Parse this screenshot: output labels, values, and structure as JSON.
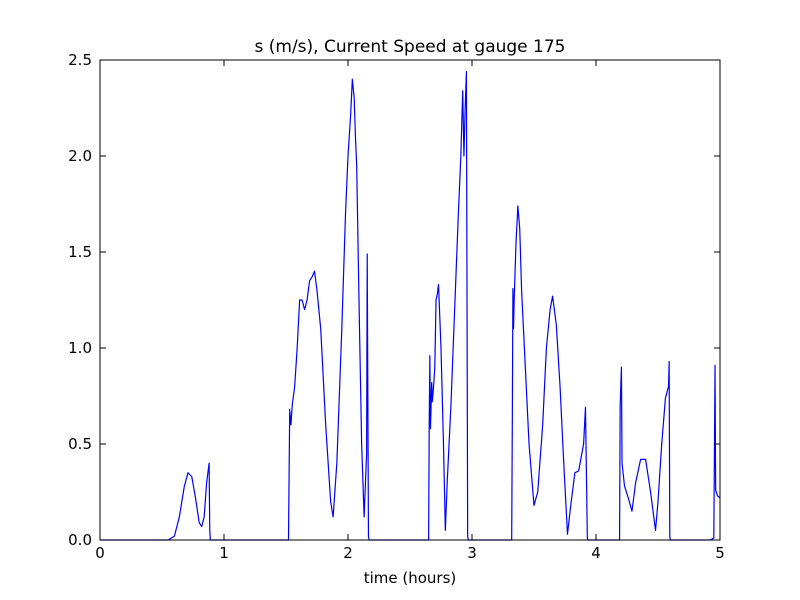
{
  "chart_data": {
    "type": "line",
    "title": "s (m/s), Current Speed at gauge 175",
    "xlabel": "time (hours)",
    "ylabel": "",
    "xlim": [
      0,
      5
    ],
    "ylim": [
      0,
      2.5
    ],
    "x_ticks": [
      "0",
      "1",
      "2",
      "3",
      "4",
      "5"
    ],
    "y_ticks": [
      "0.0",
      "0.5",
      "1.0",
      "1.5",
      "2.0",
      "2.5"
    ],
    "grid": false,
    "legend": "none",
    "reference_line": {
      "y": 0,
      "style": "dashed",
      "color": "#000000"
    },
    "series": [
      {
        "color": "#0000ff",
        "points": [
          [
            0,
            0
          ],
          [
            0.55,
            0
          ],
          [
            0.6,
            0.02
          ],
          [
            0.64,
            0.12
          ],
          [
            0.68,
            0.28
          ],
          [
            0.71,
            0.35
          ],
          [
            0.74,
            0.33
          ],
          [
            0.77,
            0.22
          ],
          [
            0.8,
            0.09
          ],
          [
            0.82,
            0.07
          ],
          [
            0.84,
            0.12
          ],
          [
            0.86,
            0.3
          ],
          [
            0.88,
            0.4
          ],
          [
            0.885,
            0.05
          ],
          [
            0.89,
            0
          ],
          [
            1.52,
            0
          ],
          [
            1.53,
            0.68
          ],
          [
            1.54,
            0.6
          ],
          [
            1.55,
            0.7
          ],
          [
            1.57,
            0.8
          ],
          [
            1.59,
            1.0
          ],
          [
            1.61,
            1.25
          ],
          [
            1.63,
            1.25
          ],
          [
            1.65,
            1.2
          ],
          [
            1.67,
            1.25
          ],
          [
            1.69,
            1.35
          ],
          [
            1.71,
            1.37
          ],
          [
            1.73,
            1.4
          ],
          [
            1.75,
            1.3
          ],
          [
            1.78,
            1.1
          ],
          [
            1.82,
            0.6
          ],
          [
            1.86,
            0.2
          ],
          [
            1.88,
            0.12
          ],
          [
            1.91,
            0.4
          ],
          [
            1.95,
            1.1
          ],
          [
            1.98,
            1.7
          ],
          [
            2.0,
            2.0
          ],
          [
            2.02,
            2.2
          ],
          [
            2.035,
            2.4
          ],
          [
            2.05,
            2.3
          ],
          [
            2.06,
            2.1
          ],
          [
            2.07,
            1.95
          ],
          [
            2.09,
            1.2
          ],
          [
            2.11,
            0.5
          ],
          [
            2.13,
            0.12
          ],
          [
            2.15,
            0.45
          ],
          [
            2.155,
            1.49
          ],
          [
            2.165,
            0.02
          ],
          [
            2.17,
            0
          ],
          [
            2.65,
            0
          ],
          [
            2.655,
            0.6
          ],
          [
            2.66,
            0.96
          ],
          [
            2.665,
            0.58
          ],
          [
            2.675,
            0.82
          ],
          [
            2.68,
            0.72
          ],
          [
            2.69,
            0.8
          ],
          [
            2.7,
            0.9
          ],
          [
            2.71,
            1.25
          ],
          [
            2.72,
            1.28
          ],
          [
            2.73,
            1.33
          ],
          [
            2.75,
            1.0
          ],
          [
            2.77,
            0.5
          ],
          [
            2.785,
            0.05
          ],
          [
            2.8,
            0.3
          ],
          [
            2.83,
            0.7
          ],
          [
            2.86,
            1.2
          ],
          [
            2.89,
            1.7
          ],
          [
            2.91,
            2.0
          ],
          [
            2.925,
            2.34
          ],
          [
            2.935,
            2.0
          ],
          [
            2.945,
            2.25
          ],
          [
            2.955,
            2.44
          ],
          [
            2.965,
            0.02
          ],
          [
            2.97,
            0
          ],
          [
            3.32,
            0
          ],
          [
            3.325,
            0.6
          ],
          [
            3.33,
            1.31
          ],
          [
            3.335,
            1.1
          ],
          [
            3.34,
            1.25
          ],
          [
            3.355,
            1.55
          ],
          [
            3.37,
            1.74
          ],
          [
            3.385,
            1.62
          ],
          [
            3.4,
            1.3
          ],
          [
            3.43,
            0.9
          ],
          [
            3.46,
            0.5
          ],
          [
            3.5,
            0.18
          ],
          [
            3.53,
            0.25
          ],
          [
            3.57,
            0.6
          ],
          [
            3.6,
            1.0
          ],
          [
            3.63,
            1.2
          ],
          [
            3.65,
            1.27
          ],
          [
            3.68,
            1.12
          ],
          [
            3.71,
            0.8
          ],
          [
            3.74,
            0.4
          ],
          [
            3.77,
            0.03
          ],
          [
            3.8,
            0.2
          ],
          [
            3.83,
            0.35
          ],
          [
            3.86,
            0.36
          ],
          [
            3.9,
            0.5
          ],
          [
            3.915,
            0.69
          ],
          [
            3.925,
            0.25
          ],
          [
            3.93,
            0.01
          ],
          [
            3.935,
            0
          ],
          [
            4.19,
            0
          ],
          [
            4.195,
            0.7
          ],
          [
            4.205,
            0.9
          ],
          [
            4.21,
            0.4
          ],
          [
            4.23,
            0.28
          ],
          [
            4.26,
            0.22
          ],
          [
            4.29,
            0.15
          ],
          [
            4.32,
            0.3
          ],
          [
            4.36,
            0.42
          ],
          [
            4.4,
            0.42
          ],
          [
            4.44,
            0.25
          ],
          [
            4.48,
            0.05
          ],
          [
            4.5,
            0.2
          ],
          [
            4.53,
            0.5
          ],
          [
            4.56,
            0.74
          ],
          [
            4.585,
            0.8
          ],
          [
            4.59,
            0.93
          ],
          [
            4.595,
            0.02
          ],
          [
            4.6,
            0
          ],
          [
            4.92,
            0
          ],
          [
            4.95,
            0.01
          ],
          [
            4.96,
            0.91
          ],
          [
            4.965,
            0.26
          ],
          [
            4.98,
            0.23
          ],
          [
            5.0,
            0.22
          ]
        ]
      }
    ]
  }
}
